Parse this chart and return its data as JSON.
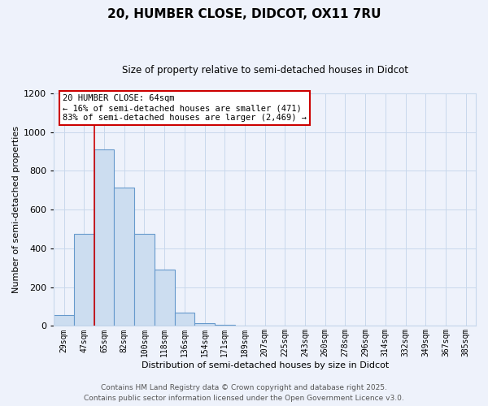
{
  "title": "20, HUMBER CLOSE, DIDCOT, OX11 7RU",
  "subtitle": "Size of property relative to semi-detached houses in Didcot",
  "xlabel": "Distribution of semi-detached houses by size in Didcot",
  "ylabel": "Number of semi-detached properties",
  "footer_line1": "Contains HM Land Registry data © Crown copyright and database right 2025.",
  "footer_line2": "Contains public sector information licensed under the Open Government Licence v3.0.",
  "bar_labels": [
    "29sqm",
    "47sqm",
    "65sqm",
    "82sqm",
    "100sqm",
    "118sqm",
    "136sqm",
    "154sqm",
    "171sqm",
    "189sqm",
    "207sqm",
    "225sqm",
    "243sqm",
    "260sqm",
    "278sqm",
    "296sqm",
    "314sqm",
    "332sqm",
    "349sqm",
    "367sqm",
    "385sqm"
  ],
  "bar_values": [
    55,
    475,
    910,
    715,
    475,
    290,
    70,
    15,
    5,
    0,
    0,
    0,
    0,
    0,
    0,
    0,
    0,
    0,
    0,
    0,
    0
  ],
  "bar_color": "#ccddf0",
  "bar_edge_color": "#6699cc",
  "vline_x_index": 2,
  "vline_color": "#cc0000",
  "ylim": [
    0,
    1200
  ],
  "yticks": [
    0,
    200,
    400,
    600,
    800,
    1000,
    1200
  ],
  "annotation_title": "20 HUMBER CLOSE: 64sqm",
  "annotation_line2": "← 16% of semi-detached houses are smaller (471)",
  "annotation_line3": "83% of semi-detached houses are larger (2,469) →",
  "annotation_box_color": "#ffffff",
  "annotation_box_edge": "#cc0000",
  "grid_color": "#c8d8ec",
  "bg_color": "#eef2fb",
  "title_fontsize": 11,
  "subtitle_fontsize": 8.5,
  "xlabel_fontsize": 8,
  "ylabel_fontsize": 8,
  "xtick_fontsize": 7,
  "ytick_fontsize": 8,
  "footer_fontsize": 6.5
}
